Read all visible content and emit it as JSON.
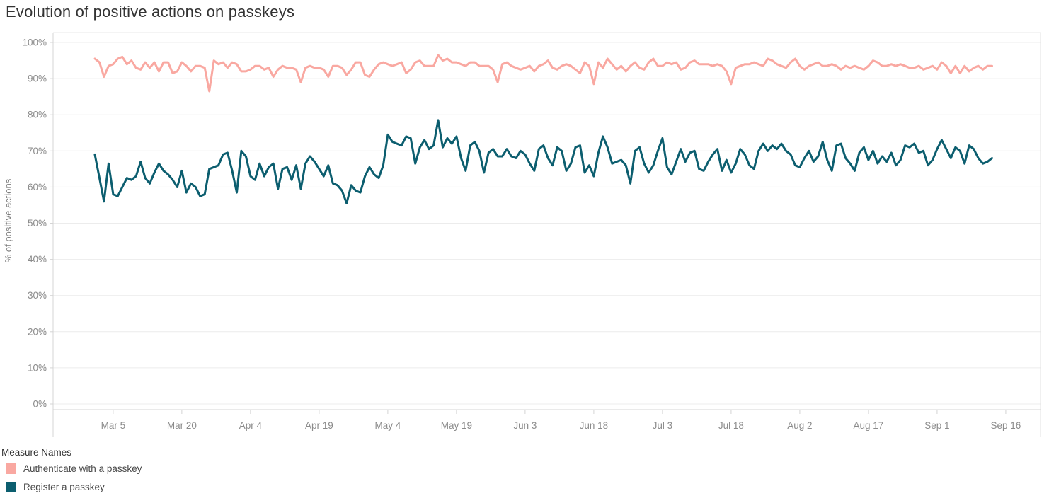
{
  "title": "Evolution of positive actions on passkeys",
  "legend": {
    "title": "Measure Names",
    "items": [
      {
        "label": "Authenticate with a passkey",
        "color": "#f9a8a1"
      },
      {
        "label": "Register a passkey",
        "color": "#0c5e6f"
      }
    ]
  },
  "colors": {
    "series_authenticate": "#f9a8a1",
    "series_register": "#0c5e6f",
    "grid": "#ececec",
    "axis_line": "#d4d4d4",
    "tick_text": "#8b8b8b",
    "axis_title_text": "#7d7d7d",
    "title_text": "#333333"
  },
  "chart_data": {
    "type": "line",
    "title": "Evolution of positive actions on passkeys",
    "xlabel": "",
    "ylabel": "% of positive actions",
    "ylim": [
      0,
      100
    ],
    "grid": true,
    "legend_position": "bottom-left",
    "x_start_date": "Mar 1",
    "x_end_date": "Sep 13",
    "y_ticks": {
      "values": [
        0,
        10,
        20,
        30,
        40,
        50,
        60,
        70,
        80,
        90,
        100
      ],
      "labels": [
        "0%",
        "10%",
        "20%",
        "30%",
        "40%",
        "50%",
        "60%",
        "70%",
        "80%",
        "90%",
        "100%"
      ]
    },
    "x_ticks": {
      "labels": [
        "Mar 5",
        "Mar 20",
        "Apr 4",
        "Apr 19",
        "May 4",
        "May 19",
        "Jun 3",
        "Jun 18",
        "Jul 3",
        "Jul 18",
        "Aug 2",
        "Aug 17",
        "Sep 1",
        "Sep 16"
      ],
      "day_indices": [
        4,
        19,
        34,
        49,
        64,
        79,
        94,
        109,
        124,
        139,
        154,
        169,
        184,
        199
      ]
    },
    "series": [
      {
        "name": "Authenticate with a passkey",
        "color": "#f9a8a1",
        "values": [
          95.5,
          94.5,
          90.5,
          93.5,
          94.0,
          95.5,
          96.0,
          94.0,
          95.0,
          93.0,
          92.5,
          94.5,
          93.0,
          94.5,
          92.0,
          94.5,
          94.5,
          91.5,
          92.0,
          94.5,
          93.5,
          92.0,
          93.5,
          93.5,
          93.0,
          86.5,
          95.0,
          94.0,
          94.5,
          93.0,
          94.5,
          94.0,
          92.0,
          92.0,
          92.5,
          93.5,
          93.5,
          92.5,
          93.0,
          90.5,
          92.5,
          93.5,
          93.0,
          93.0,
          92.5,
          89.0,
          93.0,
          93.5,
          93.0,
          93.0,
          92.5,
          90.5,
          93.5,
          93.5,
          93.0,
          91.0,
          92.5,
          94.5,
          94.5,
          91.0,
          90.5,
          92.5,
          94.0,
          94.5,
          94.0,
          93.5,
          94.0,
          94.5,
          91.5,
          92.5,
          94.5,
          95.0,
          93.5,
          93.5,
          93.5,
          96.5,
          95.0,
          95.5,
          94.5,
          94.5,
          94.0,
          93.5,
          94.5,
          94.5,
          93.5,
          93.5,
          93.5,
          92.5,
          89.0,
          94.0,
          94.5,
          93.5,
          93.0,
          92.5,
          93.0,
          93.5,
          92.0,
          93.5,
          94.0,
          95.0,
          93.0,
          92.5,
          93.5,
          94.0,
          93.5,
          92.5,
          91.5,
          94.5,
          93.5,
          88.5,
          94.5,
          93.0,
          95.5,
          94.0,
          92.5,
          93.5,
          92.0,
          93.5,
          94.5,
          93.0,
          92.5,
          94.5,
          95.5,
          93.5,
          93.5,
          94.5,
          94.0,
          94.5,
          92.5,
          93.0,
          94.5,
          95.0,
          94.0,
          94.0,
          94.0,
          93.5,
          94.0,
          93.5,
          92.0,
          88.5,
          93.0,
          93.5,
          94.0,
          94.0,
          94.5,
          94.0,
          93.5,
          95.5,
          95.0,
          94.0,
          93.5,
          93.0,
          94.5,
          95.5,
          93.5,
          92.5,
          93.5,
          94.0,
          94.5,
          93.5,
          93.5,
          94.0,
          93.5,
          92.5,
          93.5,
          93.0,
          93.5,
          93.0,
          92.5,
          93.5,
          95.0,
          94.5,
          93.5,
          93.5,
          94.0,
          93.5,
          94.0,
          93.5,
          93.0,
          93.0,
          93.5,
          92.5,
          93.0,
          93.5,
          92.5,
          94.5,
          93.5,
          91.5,
          93.5,
          91.5,
          93.5,
          92.0,
          93.0,
          93.5,
          92.5,
          93.5,
          93.5
        ]
      },
      {
        "name": "Register a passkey",
        "color": "#0c5e6f",
        "values": [
          69.0,
          62.5,
          56.0,
          66.5,
          58.0,
          57.5,
          60.0,
          62.5,
          62.0,
          63.0,
          67.0,
          62.5,
          61.0,
          64.0,
          66.5,
          64.5,
          63.5,
          62.0,
          60.0,
          64.5,
          58.5,
          61.0,
          60.0,
          57.5,
          58.0,
          65.0,
          65.5,
          66.0,
          69.0,
          69.5,
          64.5,
          58.5,
          70.0,
          68.5,
          63.0,
          62.0,
          66.5,
          63.0,
          65.5,
          66.5,
          59.5,
          65.0,
          65.5,
          62.0,
          66.0,
          59.5,
          66.5,
          68.5,
          67.0,
          65.0,
          63.0,
          66.0,
          61.0,
          60.5,
          59.0,
          55.5,
          60.5,
          59.0,
          58.5,
          63.0,
          65.5,
          63.5,
          62.5,
          66.0,
          74.5,
          72.5,
          72.0,
          71.5,
          74.0,
          73.5,
          66.5,
          71.0,
          73.0,
          70.5,
          71.5,
          78.5,
          71.0,
          73.5,
          72.0,
          74.0,
          68.0,
          64.5,
          71.5,
          72.5,
          70.0,
          64.0,
          69.5,
          70.5,
          68.5,
          68.5,
          70.5,
          68.5,
          68.0,
          70.0,
          69.0,
          66.5,
          64.5,
          70.5,
          71.5,
          68.0,
          66.0,
          71.0,
          70.0,
          64.5,
          66.5,
          71.0,
          71.5,
          64.0,
          66.0,
          63.0,
          69.5,
          74.0,
          71.0,
          66.5,
          67.0,
          67.5,
          66.0,
          61.0,
          70.0,
          71.0,
          66.5,
          64.0,
          66.0,
          70.0,
          73.5,
          65.5,
          63.5,
          67.0,
          70.5,
          67.0,
          69.5,
          70.0,
          65.0,
          64.5,
          67.0,
          69.0,
          70.5,
          64.5,
          67.5,
          64.0,
          66.5,
          70.5,
          69.0,
          66.0,
          65.0,
          70.0,
          72.0,
          70.0,
          71.5,
          70.5,
          72.0,
          70.0,
          69.0,
          66.0,
          65.5,
          68.0,
          70.0,
          67.0,
          68.5,
          72.5,
          67.5,
          64.5,
          71.5,
          72.0,
          68.0,
          66.5,
          64.5,
          69.5,
          71.0,
          67.5,
          70.0,
          66.5,
          68.5,
          67.0,
          69.5,
          66.0,
          67.5,
          71.5,
          71.0,
          72.0,
          69.5,
          70.0,
          66.0,
          67.5,
          70.5,
          73.0,
          70.5,
          68.0,
          71.0,
          70.0,
          66.5,
          71.5,
          70.5,
          68.0,
          66.5,
          67.0,
          68.0
        ]
      }
    ]
  }
}
